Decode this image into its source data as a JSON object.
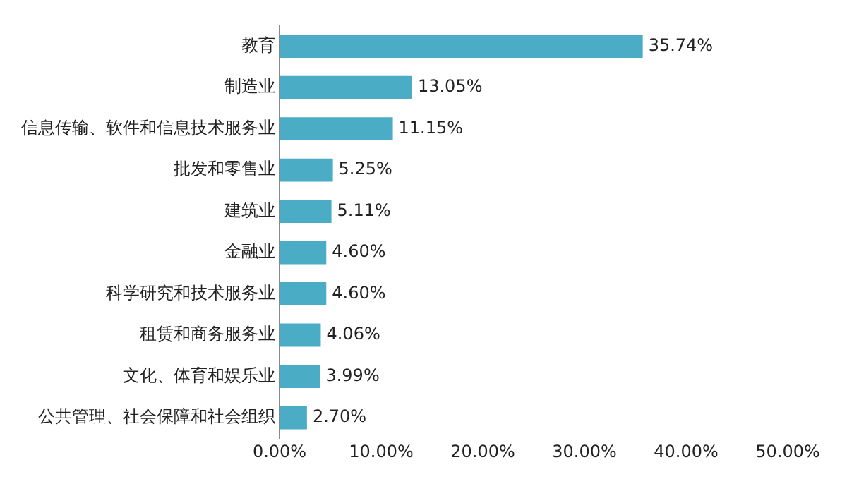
{
  "chart_data": {
    "type": "bar",
    "orientation": "horizontal",
    "categories": [
      "教育",
      "制造业",
      "信息传输、软件和信息技术服务业",
      "批发和零售业",
      "建筑业",
      "金融业",
      "科学研究和技术服务业",
      "租赁和商务服务业",
      "文化、体育和娱乐业",
      "公共管理、社会保障和社会组织"
    ],
    "values": [
      35.74,
      13.05,
      11.15,
      5.25,
      5.11,
      4.6,
      4.6,
      4.06,
      3.99,
      2.7
    ],
    "value_labels": [
      "35.74%",
      "13.05%",
      "11.15%",
      "5.25%",
      "5.11%",
      "4.60%",
      "4.60%",
      "4.06%",
      "3.99%",
      "2.70%"
    ],
    "color": "#4bacc6",
    "xlim": [
      0,
      50
    ],
    "xticks": [
      {
        "value": 0,
        "label": "0.00%"
      },
      {
        "value": 10,
        "label": "10.00%"
      },
      {
        "value": 20,
        "label": "20.00%"
      },
      {
        "value": 30,
        "label": "30.00%"
      },
      {
        "value": 40,
        "label": "40.00%"
      },
      {
        "value": 50,
        "label": "50.00%"
      }
    ],
    "grid": false,
    "legend": false
  }
}
